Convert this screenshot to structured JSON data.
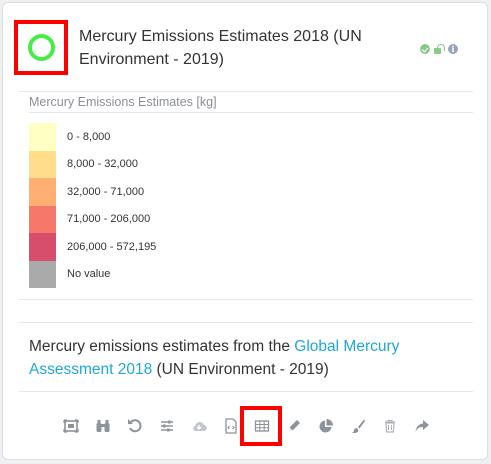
{
  "layer": {
    "title": "Mercury Emissions Estimates 2018 (UN Environment - 2019)",
    "status": [
      "check-icon",
      "unlock-icon",
      "info-icon"
    ]
  },
  "legend": {
    "title": "Mercury Emissions Estimates [kg]",
    "items": [
      {
        "label": "0 - 8,000",
        "color": "#ffffc4"
      },
      {
        "label": "8,000 - 32,000",
        "color": "#ffdd8a"
      },
      {
        "label": "32,000 - 71,000",
        "color": "#ffaf73"
      },
      {
        "label": "71,000 - 206,000",
        "color": "#f5786a"
      },
      {
        "label": "206,000 - 572,195",
        "color": "#d64e6b"
      },
      {
        "label": "No value",
        "color": "#aaaaaa"
      }
    ]
  },
  "description": {
    "before": "Mercury emissions estimates from the ",
    "link": "Global Mercury Assessment 2018",
    "after": " (UN Environment - 2019)"
  },
  "toolbar": [
    "zoom-extent-icon",
    "binoculars-icon",
    "refresh-icon",
    "sliders-icon",
    "cloud-download-icon",
    "code-file-icon",
    "table-icon",
    "pencil-icon",
    "pie-chart-icon",
    "brush-icon",
    "trash-icon",
    "share-icon"
  ],
  "colors": {
    "toggle": "#44ee44",
    "highlight": "#ff0000",
    "link": "#1ea7d8"
  }
}
